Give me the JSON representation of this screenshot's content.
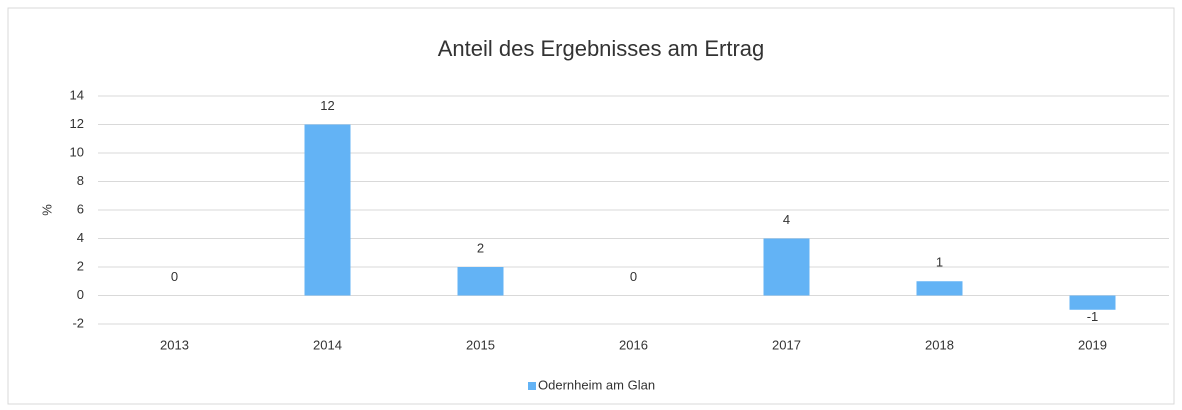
{
  "chart_data": {
    "type": "bar",
    "title": "Anteil des Ergebnisses am Ertrag",
    "y_label": "%",
    "categories": [
      "2013",
      "2014",
      "2015",
      "2016",
      "2017",
      "2018",
      "2019"
    ],
    "series": [
      {
        "name": "Odernheim am Glan",
        "color": "#63b3f5",
        "values": [
          0,
          12,
          2,
          0,
          4,
          1,
          -1
        ]
      }
    ],
    "ylim": [
      -2,
      14
    ],
    "yticks": [
      -2,
      0,
      2,
      4,
      6,
      8,
      10,
      12,
      14
    ],
    "grid": true,
    "legend": "bottom"
  }
}
